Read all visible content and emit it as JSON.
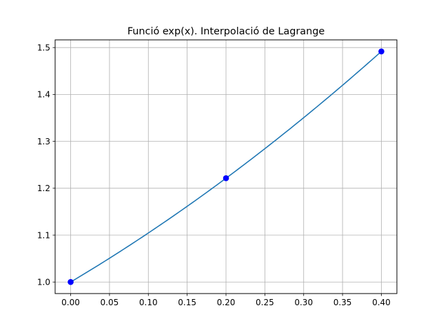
{
  "chart_data": {
    "type": "line",
    "title": "Funció exp(x). Interpolació de Lagrange",
    "xlabel": "",
    "ylabel": "",
    "xlim": [
      -0.02,
      0.42
    ],
    "ylim": [
      0.9754,
      1.5164
    ],
    "grid": true,
    "xticks": [
      0.0,
      0.05,
      0.1,
      0.15,
      0.2,
      0.25,
      0.3,
      0.35,
      0.4
    ],
    "xtick_labels": [
      "0.00",
      "0.05",
      "0.10",
      "0.15",
      "0.20",
      "0.25",
      "0.30",
      "0.35",
      "0.40"
    ],
    "yticks": [
      1.0,
      1.1,
      1.2,
      1.3,
      1.4,
      1.5
    ],
    "ytick_labels": [
      "1.0",
      "1.1",
      "1.2",
      "1.3",
      "1.4",
      "1.5"
    ],
    "series": [
      {
        "kind": "line",
        "color": "#1f77b4",
        "interpolation": "lagrange",
        "x": [
          0.0,
          0.2,
          0.4
        ],
        "y": [
          1.0,
          1.2214,
          1.4918
        ]
      },
      {
        "kind": "points",
        "color": "#0000ff",
        "x": [
          0.0,
          0.2,
          0.4
        ],
        "y": [
          1.0,
          1.2214,
          1.4918
        ]
      }
    ]
  }
}
